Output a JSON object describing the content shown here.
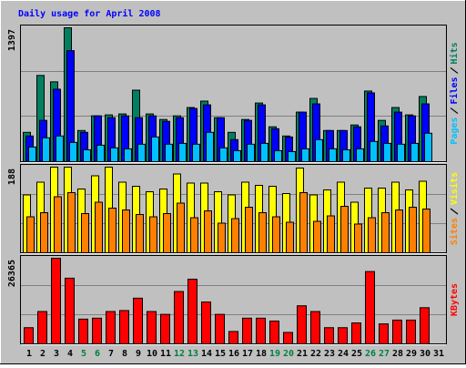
{
  "chart_data": [
    {
      "type": "bar",
      "title": "Daily usage for April 2008",
      "ylim": [
        0,
        1397
      ],
      "yticks": [
        1397
      ],
      "series": [
        {
          "name": "Pages",
          "color": "#00c0ff",
          "values": [
            153,
            249,
            268,
            201,
            124,
            172,
            144,
            134,
            182,
            258,
            182,
            191,
            182,
            306,
            144,
            115,
            182,
            191,
            115,
            105,
            134,
            230,
            134,
            124,
            134,
            211,
            191,
            182,
            191,
            297,
            0
          ]
        },
        {
          "name": "Files",
          "color": "#0000ff",
          "values": [
            268,
            431,
            756,
            1158,
            306,
            478,
            459,
            478,
            459,
            478,
            421,
            459,
            555,
            593,
            459,
            230,
            431,
            593,
            344,
            258,
            517,
            603,
            325,
            325,
            364,
            718,
            373,
            517,
            478,
            603,
            0
          ]
        },
        {
          "name": "Hits",
          "color": "#008060",
          "values": [
            306,
            900,
            833,
            1397,
            325,
            478,
            488,
            498,
            746,
            498,
            440,
            478,
            565,
            632,
            459,
            306,
            440,
            612,
            364,
            268,
            517,
            660,
            325,
            325,
            383,
            737,
            431,
            565,
            488,
            680,
            0
          ]
        }
      ]
    },
    {
      "type": "bar",
      "ylim": [
        0,
        188
      ],
      "yticks": [
        188
      ],
      "series": [
        {
          "name": "Sites",
          "color": "#ff8000",
          "values": [
            79,
            88,
            123,
            132,
            86,
            111,
            98,
            94,
            84,
            79,
            86,
            109,
            77,
            92,
            65,
            75,
            100,
            88,
            79,
            67,
            132,
            69,
            81,
            102,
            63,
            77,
            88,
            94,
            100,
            96,
            0
          ]
        },
        {
          "name": "Visits",
          "color": "#ffff00",
          "values": [
            127,
            155,
            188,
            188,
            140,
            169,
            188,
            155,
            146,
            134,
            140,
            173,
            153,
            153,
            134,
            127,
            155,
            148,
            146,
            130,
            186,
            127,
            138,
            155,
            111,
            142,
            142,
            155,
            138,
            157,
            0
          ]
        }
      ]
    },
    {
      "type": "bar",
      "ylim": [
        0,
        26365
      ],
      "yticks": [
        26365
      ],
      "categories": [
        "1",
        "2",
        "3",
        "4",
        "5",
        "6",
        "7",
        "8",
        "9",
        "10",
        "11",
        "12",
        "13",
        "14",
        "15",
        "16",
        "17",
        "18",
        "19",
        "20",
        "21",
        "22",
        "23",
        "24",
        "25",
        "26",
        "27",
        "28",
        "29",
        "30",
        "31"
      ],
      "category_colors": [
        "#000000",
        "#000000",
        "#000000",
        "#000000",
        "#008040",
        "#008040",
        "#000000",
        "#000000",
        "#000000",
        "#000000",
        "#000000",
        "#008040",
        "#008040",
        "#000000",
        "#000000",
        "#000000",
        "#000000",
        "#000000",
        "#008040",
        "#008040",
        "#000000",
        "#000000",
        "#000000",
        "#000000",
        "#000000",
        "#008040",
        "#008040",
        "#000000",
        "#000000",
        "#000000",
        "#000000"
      ],
      "series": [
        {
          "name": "KBytes",
          "color": "#ff0000",
          "values": [
            4980,
            9960,
            26365,
            20220,
            7620,
            7910,
            9960,
            10260,
            14070,
            9960,
            9080,
            16120,
            19920,
            12890,
            9080,
            3810,
            7910,
            7910,
            7030,
            3520,
            11720,
            9960,
            4980,
            4980,
            6450,
            22270,
            6150,
            7320,
            7320,
            11130,
            0
          ]
        }
      ]
    }
  ]
}
